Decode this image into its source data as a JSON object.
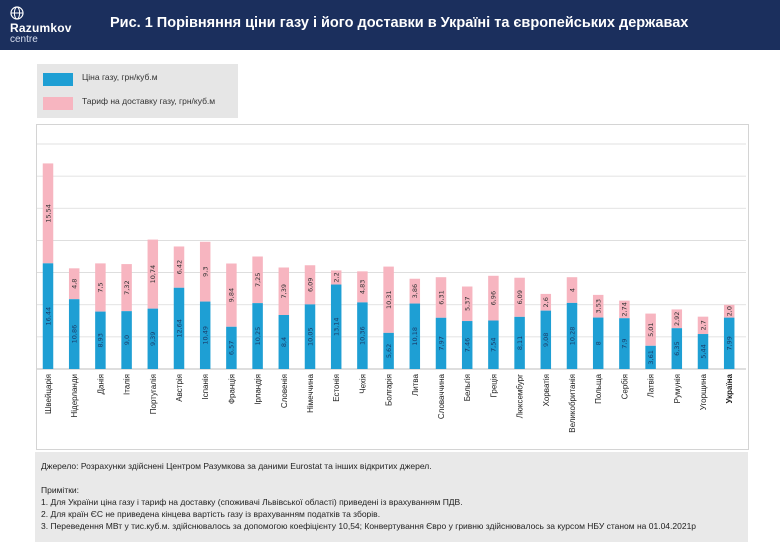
{
  "header": {
    "logo_name": "Razumkov",
    "logo_sub": "centre",
    "title": "Рис. 1 Порівняння ціни газу і його доставки в Україні та європейських державах"
  },
  "legend": {
    "items": [
      {
        "label": "Ціна газу, грн/куб.м",
        "color": "#1e9fd4"
      },
      {
        "label": "Тариф на доставку газу, грн/куб.м",
        "color": "#f7b5c0"
      }
    ]
  },
  "chart_data": {
    "type": "bar",
    "stacked": true,
    "categories": [
      "Швейцарія",
      "Нідерланди",
      "Данія",
      "Італія",
      "Португалія",
      "Австрія",
      "Іспанія",
      "Франція",
      "Ірландія",
      "Словенія",
      "Німеччина",
      "Естонія",
      "Чехія",
      "Болгарія",
      "Литва",
      "Словаччина",
      "Бельгія",
      "Греція",
      "Люксембург",
      "Хорватія",
      "Великобританія",
      "Польща",
      "Сербія",
      "Латвія",
      "Румунія",
      "Угорщина",
      "Україна"
    ],
    "series": [
      {
        "values": [
          16.44,
          10.86,
          8.93,
          9.0,
          9.39,
          12.64,
          10.49,
          6.57,
          10.25,
          8.4,
          10.05,
          13.14,
          10.36,
          5.62,
          10.18,
          7.97,
          7.46,
          7.54,
          8.11,
          9.08,
          10.28,
          8.0,
          7.9,
          3.61,
          6.35,
          5.44,
          7.99
        ],
        "labels": [
          "16,44",
          "10,86",
          "8,93",
          "9,0",
          "9,39",
          "12,64",
          "10,49",
          "6,57",
          "10,25",
          "8,4",
          "10,05",
          "13,14",
          "10,36",
          "5,62",
          "10,18",
          "7,97",
          "7,46",
          "7,54",
          "8,11",
          "9,08",
          "10,28",
          "8",
          "7,9",
          "3,61",
          "6,35",
          "5,44",
          "7,99"
        ]
      },
      {
        "values": [
          15.54,
          4.8,
          7.5,
          7.32,
          10.74,
          6.42,
          9.3,
          9.84,
          7.25,
          7.39,
          6.09,
          2.2,
          4.83,
          10.31,
          3.86,
          6.31,
          5.37,
          6.96,
          6.09,
          2.6,
          4.0,
          3.53,
          2.74,
          5.01,
          2.92,
          2.7,
          2.0
        ],
        "labels": [
          "15,54",
          "4,8",
          "7,5",
          "7,32",
          "10,74",
          "6,42",
          "9,3",
          "9,84",
          "7,25",
          "7,39",
          "6,09",
          "2,2",
          "4,83",
          "10,31",
          "3,86",
          "6,31",
          "5,37",
          "6,96",
          "6,09",
          "2,6",
          "4",
          "3,53",
          "2,74",
          "5,01",
          "2,92",
          "2,7",
          "2,0"
        ]
      }
    ],
    "ylim": [
      0,
      35
    ],
    "grid": true,
    "highlight_category": "Україна",
    "colors": {
      "price": "#1e9fd4",
      "tariff": "#f7b5c0",
      "grid": "#d9d9d9"
    }
  },
  "footer": {
    "source": "Джерело: Розрахунки здійснені Центром Разумкова за даними Eurostat та інших відкритих джерел.",
    "notes_title": "Примітки:",
    "note1": "1. Для України ціна газу і тариф на доставку (споживачі Львівської області) приведені із врахуванням ПДВ.",
    "note2": "2. Для країн ЄС не приведена кінцева вартість газу із врахуванням податків та зборів.",
    "note3": "3. Переведення МВт у тис.куб.м. здійснювалось за допомогою коефіцієнту 10,54; Конвертування Євро у гривню здійснювалось за курсом НБУ станом на 01.04.2021р"
  }
}
